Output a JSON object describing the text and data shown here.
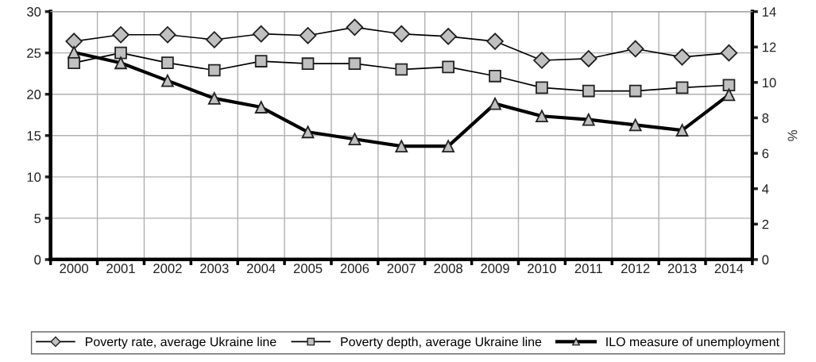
{
  "chart_data": {
    "type": "line",
    "categories": [
      "2000",
      "2001",
      "2002",
      "2003",
      "2004",
      "2005",
      "2006",
      "2007",
      "2008",
      "2009",
      "2010",
      "2011",
      "2012",
      "2013",
      "2014"
    ],
    "series": [
      {
        "name": "Poverty rate, average Ukraine line",
        "color": "#000000",
        "marker": "diamond",
        "values": [
          26.4,
          27.2,
          27.2,
          26.6,
          27.3,
          27.1,
          28.1,
          27.3,
          27.0,
          26.4,
          24.1,
          24.3,
          25.5,
          24.5,
          25.0
        ]
      },
      {
        "name": "Poverty depth, average Ukraine line",
        "color": "#000000",
        "marker": "square",
        "values": [
          23.8,
          25.0,
          23.8,
          22.9,
          24.0,
          23.7,
          23.7,
          23.0,
          23.3,
          22.2,
          20.8,
          20.4,
          20.4,
          20.8,
          21.1
        ]
      },
      {
        "name": "ILO measure of unemployment",
        "color": "#000000",
        "marker": "triangle",
        "axis": "y2",
        "values": [
          11.7,
          11.1,
          10.1,
          9.1,
          8.6,
          7.2,
          6.8,
          6.4,
          6.4,
          8.8,
          8.1,
          7.9,
          7.6,
          7.3,
          9.3
        ]
      }
    ],
    "ylim": [
      0,
      30
    ],
    "yticks": [
      0,
      5,
      10,
      15,
      20,
      25,
      30
    ],
    "y2lim": [
      0,
      14
    ],
    "y2ticks": [
      0,
      2,
      4,
      6,
      8,
      10,
      12,
      14
    ],
    "y2label": "%",
    "grid": true,
    "legend": "bottom"
  }
}
